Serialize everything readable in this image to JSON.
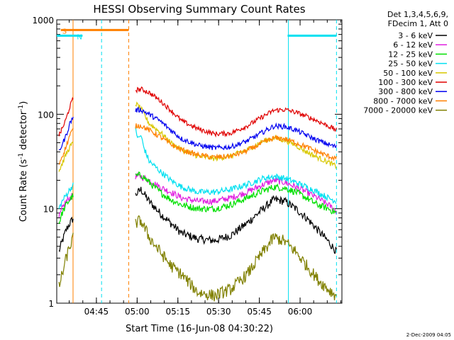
{
  "chart_data": {
    "type": "line",
    "title": "HESSI Observing Summary Count Rates",
    "xlabel": "Start Time (16-Jun-08 04:30:22)",
    "ylabel_main": "Count Rate (s",
    "ylabel_sup1": "-1",
    "ylabel_mid": " detector",
    "ylabel_sup2": "-1",
    "ylabel_end": ")",
    "x_unit": "minutes since 04:30:22",
    "xlim": [
      0,
      105
    ],
    "ylim": [
      1,
      1000
    ],
    "y_scale": "log",
    "x_ticks": [
      {
        "label": "04:45",
        "x": 14.6
      },
      {
        "label": "05:00",
        "x": 29.6
      },
      {
        "label": "05:15",
        "x": 44.6
      },
      {
        "label": "05:30",
        "x": 59.6
      },
      {
        "label": "05:45",
        "x": 74.6
      },
      {
        "label": "06:00",
        "x": 89.6
      }
    ],
    "y_ticks": [
      {
        "label": "1",
        "v": 1
      },
      {
        "label": "10",
        "v": 10
      },
      {
        "label": "100",
        "v": 100
      },
      {
        "label": "1000",
        "v": 1000
      }
    ],
    "legend_header": [
      "Det 1,3,4,5,6,9,",
      "FDecim 1, Att 0"
    ],
    "legend_position": "right",
    "footer_date": "2-Dec-2009 04:05",
    "segments": [
      {
        "x0": 0.8,
        "x1": 6.2
      },
      {
        "x0": 29.0,
        "x1": 103.0
      }
    ],
    "series": [
      {
        "name": "3 - 6 keV",
        "color": "#000000",
        "values": [
          [
            0.8,
            3.5
          ],
          [
            2,
            4.5
          ],
          [
            3.5,
            6
          ],
          [
            4.8,
            7
          ],
          [
            6.2,
            8
          ],
          [
            29,
            14
          ],
          [
            31,
            16
          ],
          [
            34,
            12
          ],
          [
            38,
            9
          ],
          [
            42,
            7
          ],
          [
            46,
            5.5
          ],
          [
            52,
            4.8
          ],
          [
            58,
            4.6
          ],
          [
            64,
            5.2
          ],
          [
            70,
            7
          ],
          [
            76,
            10
          ],
          [
            80,
            12.5
          ],
          [
            84,
            12
          ],
          [
            88,
            10
          ],
          [
            92,
            8
          ],
          [
            96,
            6
          ],
          [
            100,
            4.5
          ],
          [
            103,
            3.5
          ]
        ]
      },
      {
        "name": "6 - 12 keV",
        "color": "#e020e0",
        "values": [
          [
            0.8,
            8
          ],
          [
            2,
            10
          ],
          [
            3.5,
            12
          ],
          [
            4.8,
            13
          ],
          [
            6.2,
            14
          ],
          [
            29,
            22
          ],
          [
            31,
            22
          ],
          [
            34,
            20
          ],
          [
            38,
            17
          ],
          [
            42,
            15
          ],
          [
            46,
            13
          ],
          [
            52,
            12
          ],
          [
            58,
            12
          ],
          [
            64,
            13
          ],
          [
            70,
            15
          ],
          [
            76,
            18
          ],
          [
            80,
            20
          ],
          [
            84,
            19
          ],
          [
            88,
            17
          ],
          [
            92,
            15
          ],
          [
            96,
            13
          ],
          [
            100,
            11
          ],
          [
            103,
            9.5
          ]
        ]
      },
      {
        "name": "12 - 25 keV",
        "color": "#00e000",
        "values": [
          [
            0.8,
            7
          ],
          [
            2,
            9
          ],
          [
            3.5,
            11
          ],
          [
            4.8,
            12.5
          ],
          [
            6.2,
            14
          ],
          [
            29,
            22
          ],
          [
            31,
            23
          ],
          [
            34,
            19
          ],
          [
            38,
            15
          ],
          [
            42,
            12.5
          ],
          [
            46,
            11
          ],
          [
            52,
            10
          ],
          [
            58,
            10
          ],
          [
            64,
            11
          ],
          [
            70,
            13
          ],
          [
            76,
            15.5
          ],
          [
            80,
            17
          ],
          [
            84,
            16.5
          ],
          [
            88,
            15
          ],
          [
            92,
            13
          ],
          [
            96,
            11
          ],
          [
            100,
            10
          ],
          [
            103,
            9
          ]
        ]
      },
      {
        "name": "25 - 50 keV",
        "color": "#00e0f0",
        "values": [
          [
            0.8,
            10
          ],
          [
            2,
            12
          ],
          [
            3.5,
            14
          ],
          [
            4.8,
            16
          ],
          [
            6.2,
            18
          ],
          [
            29,
            70
          ],
          [
            30,
            55
          ],
          [
            31,
            60
          ],
          [
            32,
            45
          ],
          [
            34,
            32
          ],
          [
            38,
            25
          ],
          [
            42,
            20
          ],
          [
            46,
            17
          ],
          [
            52,
            15
          ],
          [
            58,
            15
          ],
          [
            64,
            16
          ],
          [
            70,
            18
          ],
          [
            76,
            21
          ],
          [
            80,
            22
          ],
          [
            84,
            21
          ],
          [
            88,
            19
          ],
          [
            92,
            17
          ],
          [
            96,
            15
          ],
          [
            100,
            13
          ],
          [
            103,
            12
          ]
        ]
      },
      {
        "name": "50 - 100 keV",
        "color": "#d8c800",
        "values": [
          [
            0.8,
            25
          ],
          [
            2,
            30
          ],
          [
            3.5,
            38
          ],
          [
            4.8,
            45
          ],
          [
            6.2,
            50
          ],
          [
            29,
            130
          ],
          [
            31,
            115
          ],
          [
            34,
            80
          ],
          [
            38,
            65
          ],
          [
            42,
            50
          ],
          [
            46,
            42
          ],
          [
            52,
            36
          ],
          [
            58,
            34
          ],
          [
            64,
            36
          ],
          [
            70,
            42
          ],
          [
            76,
            52
          ],
          [
            80,
            56
          ],
          [
            84,
            53
          ],
          [
            88,
            47
          ],
          [
            92,
            40
          ],
          [
            96,
            35
          ],
          [
            100,
            31
          ],
          [
            103,
            28
          ]
        ]
      },
      {
        "name": "100 - 300 keV",
        "color": "#e00000",
        "values": [
          [
            0.8,
            60
          ],
          [
            2,
            70
          ],
          [
            3.5,
            90
          ],
          [
            4.8,
            120
          ],
          [
            6.2,
            150
          ],
          [
            29,
            180
          ],
          [
            31,
            185
          ],
          [
            34,
            170
          ],
          [
            38,
            140
          ],
          [
            42,
            110
          ],
          [
            46,
            85
          ],
          [
            52,
            70
          ],
          [
            58,
            62
          ],
          [
            64,
            63
          ],
          [
            70,
            75
          ],
          [
            76,
            95
          ],
          [
            80,
            110
          ],
          [
            84,
            112
          ],
          [
            88,
            105
          ],
          [
            92,
            95
          ],
          [
            96,
            85
          ],
          [
            100,
            75
          ],
          [
            103,
            68
          ]
        ]
      },
      {
        "name": "300 - 800 keV",
        "color": "#0000f0",
        "values": [
          [
            0.8,
            40
          ],
          [
            2,
            48
          ],
          [
            3.5,
            60
          ],
          [
            4.8,
            80
          ],
          [
            6.2,
            95
          ],
          [
            29,
            110
          ],
          [
            31,
            112
          ],
          [
            34,
            100
          ],
          [
            38,
            85
          ],
          [
            42,
            68
          ],
          [
            46,
            55
          ],
          [
            52,
            47
          ],
          [
            58,
            44
          ],
          [
            64,
            45
          ],
          [
            70,
            52
          ],
          [
            76,
            65
          ],
          [
            80,
            75
          ],
          [
            84,
            74
          ],
          [
            88,
            68
          ],
          [
            92,
            60
          ],
          [
            96,
            53
          ],
          [
            100,
            48
          ],
          [
            103,
            45
          ]
        ]
      },
      {
        "name": "800 - 7000 keV",
        "color": "#ff8000",
        "values": [
          [
            0.8,
            30
          ],
          [
            2,
            36
          ],
          [
            3.5,
            46
          ],
          [
            4.8,
            60
          ],
          [
            6.2,
            70
          ],
          [
            29,
            75
          ],
          [
            31,
            76
          ],
          [
            34,
            68
          ],
          [
            38,
            58
          ],
          [
            42,
            48
          ],
          [
            46,
            42
          ],
          [
            52,
            37
          ],
          [
            58,
            35
          ],
          [
            64,
            36
          ],
          [
            70,
            41
          ],
          [
            76,
            50
          ],
          [
            80,
            56
          ],
          [
            84,
            55
          ],
          [
            88,
            50
          ],
          [
            92,
            45
          ],
          [
            96,
            40
          ],
          [
            100,
            36
          ],
          [
            103,
            34
          ]
        ]
      },
      {
        "name": "7000 - 20000 keV",
        "color": "#808000",
        "values": [
          [
            0.8,
            1.5
          ],
          [
            2,
            2
          ],
          [
            3.5,
            3
          ],
          [
            4.8,
            4
          ],
          [
            6.2,
            5
          ],
          [
            29,
            7
          ],
          [
            31,
            7.5
          ],
          [
            34,
            5
          ],
          [
            38,
            3.5
          ],
          [
            42,
            2.5
          ],
          [
            46,
            2
          ],
          [
            52,
            1.3
          ],
          [
            58,
            1.2
          ],
          [
            64,
            1.4
          ],
          [
            70,
            2
          ],
          [
            76,
            3.5
          ],
          [
            80,
            5
          ],
          [
            84,
            4.5
          ],
          [
            88,
            3.5
          ],
          [
            92,
            2.5
          ],
          [
            96,
            1.8
          ],
          [
            100,
            1.4
          ],
          [
            103,
            1.2
          ]
        ]
      }
    ],
    "flags": [
      {
        "label": "S",
        "color": "#ff8000",
        "x0": 1.5,
        "x1": 26.5,
        "v": 780
      },
      {
        "label": "N",
        "color": "#00e0f0",
        "x0": 0,
        "x1": 9.5,
        "v": 680
      },
      {
        "label": "",
        "color": "#00e0f0",
        "x0": 85,
        "x1": 103,
        "v": 680
      }
    ],
    "vlines": [
      {
        "x": 6.0,
        "color": "#ff8000",
        "dash": false
      },
      {
        "x": 16.5,
        "color": "#00e0f0",
        "dash": true
      },
      {
        "x": 26.5,
        "color": "#ff8000",
        "dash": true
      },
      {
        "x": 85.3,
        "color": "#00e0f0",
        "dash": false
      },
      {
        "x": 103.0,
        "color": "#00e0f0",
        "dash": true
      }
    ]
  }
}
